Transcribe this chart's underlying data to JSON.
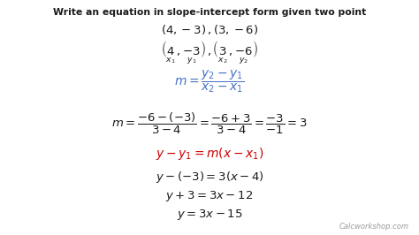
{
  "title": "Write an equation in slope-intercept form given two point",
  "background_color": "#ffffff",
  "text_color_black": "#1a1a1a",
  "text_color_blue": "#4472c4",
  "text_color_red": "#cc0000",
  "text_color_gray": "#999999",
  "watermark": "Calcworkshop.com",
  "fig_width": 4.74,
  "fig_height": 2.66,
  "dpi": 100
}
